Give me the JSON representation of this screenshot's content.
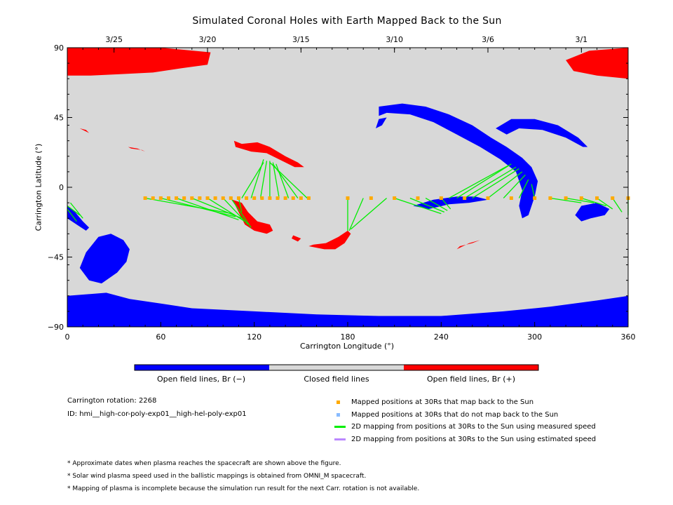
{
  "chart_data": {
    "type": "map",
    "title": "Simulated Coronal Holes with Earth Mapped Back to the Sun",
    "xlabel": "Carrington Longitude (°)",
    "ylabel": "Carrington Latitude (°)",
    "xlim": [
      0,
      360
    ],
    "ylim": [
      -90,
      90
    ],
    "x_ticks": [
      "0",
      "60",
      "120",
      "180",
      "240",
      "300",
      "360"
    ],
    "y_ticks": [
      "90",
      "45",
      "0",
      "−45",
      "−90"
    ],
    "date_ticks": [
      {
        "label": "3/25",
        "lon": 30
      },
      {
        "label": "3/20",
        "lon": 90
      },
      {
        "label": "3/15",
        "lon": 150
      },
      {
        "label": "3/10",
        "lon": 210
      },
      {
        "label": "3/6",
        "lon": 270
      },
      {
        "label": "3/1",
        "lon": 330
      }
    ],
    "background_color": "#d8d8d8",
    "colors": {
      "negative": "#0000ff",
      "closed": "#d8d8d8",
      "positive": "#ff0000",
      "mapped": "#ffaa00",
      "unmapped": "#88bbff",
      "measured": "#00ee00",
      "estimated": "#bb88ff"
    },
    "holes_negative": [
      [
        [
          0,
          -90
        ],
        [
          0,
          -70
        ],
        [
          25,
          -68
        ],
        [
          40,
          -72
        ],
        [
          60,
          -75
        ],
        [
          80,
          -78
        ],
        [
          120,
          -80
        ],
        [
          160,
          -82
        ],
        [
          200,
          -83
        ],
        [
          240,
          -83
        ],
        [
          280,
          -80
        ],
        [
          310,
          -77
        ],
        [
          340,
          -73
        ],
        [
          360,
          -70
        ],
        [
          360,
          -90
        ]
      ],
      [
        [
          8,
          -52
        ],
        [
          12,
          -42
        ],
        [
          20,
          -32
        ],
        [
          28,
          -30
        ],
        [
          36,
          -34
        ],
        [
          40,
          -40
        ],
        [
          38,
          -48
        ],
        [
          32,
          -55
        ],
        [
          22,
          -62
        ],
        [
          14,
          -60
        ]
      ],
      [
        [
          0,
          -12
        ],
        [
          5,
          -16
        ],
        [
          10,
          -22
        ],
        [
          14,
          -26
        ],
        [
          12,
          -28
        ],
        [
          6,
          -24
        ],
        [
          0,
          -20
        ]
      ],
      [
        [
          200,
          52
        ],
        [
          215,
          54
        ],
        [
          230,
          52
        ],
        [
          245,
          47
        ],
        [
          260,
          40
        ],
        [
          272,
          32
        ],
        [
          282,
          26
        ],
        [
          292,
          19
        ],
        [
          298,
          13
        ],
        [
          302,
          4
        ],
        [
          300,
          -6
        ],
        [
          296,
          -18
        ],
        [
          292,
          -20
        ],
        [
          290,
          -12
        ],
        [
          292,
          -2
        ],
        [
          288,
          10
        ],
        [
          278,
          18
        ],
        [
          265,
          26
        ],
        [
          250,
          34
        ],
        [
          235,
          42
        ],
        [
          220,
          47
        ],
        [
          205,
          48
        ],
        [
          200,
          46
        ]
      ],
      [
        [
          198,
          38
        ],
        [
          200,
          44
        ],
        [
          205,
          45
        ],
        [
          202,
          40
        ]
      ],
      [
        [
          275,
          38
        ],
        [
          285,
          44
        ],
        [
          300,
          44
        ],
        [
          315,
          40
        ],
        [
          328,
          32
        ],
        [
          334,
          26
        ],
        [
          331,
          26
        ],
        [
          320,
          32
        ],
        [
          305,
          37
        ],
        [
          290,
          38
        ],
        [
          282,
          34
        ]
      ],
      [
        [
          222,
          -12
        ],
        [
          235,
          -8
        ],
        [
          250,
          -6
        ],
        [
          262,
          -6
        ],
        [
          270,
          -8
        ],
        [
          258,
          -10
        ],
        [
          245,
          -11
        ],
        [
          232,
          -14
        ]
      ],
      [
        [
          330,
          -12
        ],
        [
          340,
          -10
        ],
        [
          348,
          -14
        ],
        [
          345,
          -18
        ],
        [
          336,
          -20
        ],
        [
          330,
          -22
        ],
        [
          326,
          -18
        ]
      ]
    ],
    "holes_positive": [
      [
        [
          0,
          90
        ],
        [
          0,
          72
        ],
        [
          15,
          72
        ],
        [
          35,
          73
        ],
        [
          55,
          74
        ],
        [
          75,
          77
        ],
        [
          90,
          79
        ],
        [
          92,
          87
        ],
        [
          60,
          90
        ]
      ],
      [
        [
          360,
          90
        ],
        [
          360,
          70
        ],
        [
          340,
          72
        ],
        [
          325,
          75
        ],
        [
          320,
          82
        ],
        [
          335,
          88
        ]
      ],
      [
        [
          107,
          30
        ],
        [
          112,
          28
        ],
        [
          122,
          29
        ],
        [
          130,
          26
        ],
        [
          140,
          20
        ],
        [
          148,
          16
        ],
        [
          152,
          13
        ],
        [
          146,
          13
        ],
        [
          136,
          18
        ],
        [
          128,
          22
        ],
        [
          118,
          23
        ],
        [
          108,
          26
        ]
      ],
      [
        [
          106,
          -8
        ],
        [
          110,
          -16
        ],
        [
          114,
          -24
        ],
        [
          120,
          -28
        ],
        [
          128,
          -30
        ],
        [
          132,
          -28
        ],
        [
          130,
          -24
        ],
        [
          122,
          -22
        ],
        [
          116,
          -16
        ],
        [
          112,
          -10
        ]
      ],
      [
        [
          155,
          -38
        ],
        [
          165,
          -40
        ],
        [
          172,
          -40
        ],
        [
          178,
          -36
        ],
        [
          182,
          -30
        ],
        [
          180,
          -28
        ],
        [
          174,
          -32
        ],
        [
          166,
          -36
        ],
        [
          158,
          -37
        ]
      ],
      [
        [
          145,
          -31
        ],
        [
          150,
          -33
        ],
        [
          148,
          -35
        ],
        [
          144,
          -33
        ]
      ],
      [
        [
          250,
          -40
        ],
        [
          258,
          -36
        ],
        [
          265,
          -34
        ],
        [
          260,
          -36
        ],
        [
          252,
          -38
        ]
      ],
      [
        [
          39,
          26
        ],
        [
          45,
          25
        ],
        [
          50,
          23
        ],
        [
          48,
          24
        ],
        [
          41,
          25
        ]
      ],
      [
        [
          8,
          38
        ],
        [
          12,
          37
        ],
        [
          14,
          35
        ],
        [
          10,
          37
        ]
      ]
    ],
    "mapped_lat": -7,
    "mapped_positions": [
      50,
      55,
      60,
      65,
      70,
      75,
      80,
      85,
      90,
      95,
      100,
      105,
      110,
      115,
      120,
      125,
      130,
      135,
      140,
      145,
      150,
      155,
      180,
      195,
      210,
      225,
      240,
      255,
      270,
      285,
      300,
      310,
      320,
      330,
      340,
      350,
      360
    ],
    "measured_lines": [
      [
        [
          50,
          -7
        ],
        [
          106,
          -17
        ]
      ],
      [
        [
          60,
          -7
        ],
        [
          108,
          -19
        ]
      ],
      [
        [
          70,
          -7
        ],
        [
          110,
          -21
        ]
      ],
      [
        [
          80,
          -7
        ],
        [
          112,
          -20
        ]
      ],
      [
        [
          90,
          -7
        ],
        [
          114,
          -22
        ]
      ],
      [
        [
          100,
          -7
        ],
        [
          116,
          -24
        ]
      ],
      [
        [
          105,
          -7
        ],
        [
          118,
          -26
        ]
      ],
      [
        [
          110,
          -7
        ],
        [
          112,
          -16
        ]
      ],
      [
        [
          112,
          -7
        ],
        [
          126,
          16
        ]
      ],
      [
        [
          118,
          -7
        ],
        [
          126,
          18
        ]
      ],
      [
        [
          124,
          -7
        ],
        [
          128,
          17
        ]
      ],
      [
        [
          130,
          -7
        ],
        [
          130,
          17
        ]
      ],
      [
        [
          136,
          -7
        ],
        [
          132,
          16
        ]
      ],
      [
        [
          142,
          -7
        ],
        [
          134,
          15
        ]
      ],
      [
        [
          148,
          -7
        ],
        [
          132,
          15
        ]
      ],
      [
        [
          154,
          -7
        ],
        [
          130,
          16
        ]
      ],
      [
        [
          180,
          -7
        ],
        [
          180,
          -28
        ]
      ],
      [
        [
          190,
          -7
        ],
        [
          181,
          -28
        ]
      ],
      [
        [
          205,
          -7
        ],
        [
          182,
          -27
        ]
      ],
      [
        [
          210,
          -7
        ],
        [
          240,
          -17
        ]
      ],
      [
        [
          220,
          -7
        ],
        [
          242,
          -16
        ]
      ],
      [
        [
          230,
          -7
        ],
        [
          244,
          -15
        ]
      ],
      [
        [
          240,
          -7
        ],
        [
          246,
          -14
        ]
      ],
      [
        [
          245,
          -7
        ],
        [
          283,
          14
        ]
      ],
      [
        [
          250,
          -7
        ],
        [
          285,
          15
        ]
      ],
      [
        [
          255,
          -7
        ],
        [
          288,
          13
        ]
      ],
      [
        [
          260,
          -7
        ],
        [
          290,
          12
        ]
      ],
      [
        [
          270,
          -7
        ],
        [
          292,
          10
        ]
      ],
      [
        [
          280,
          -7
        ],
        [
          294,
          8
        ]
      ],
      [
        [
          290,
          -7
        ],
        [
          296,
          5
        ]
      ],
      [
        [
          300,
          -7
        ],
        [
          298,
          2
        ]
      ],
      [
        [
          310,
          -7
        ],
        [
          330,
          -10
        ]
      ],
      [
        [
          320,
          -7
        ],
        [
          338,
          -10
        ]
      ],
      [
        [
          330,
          -7
        ],
        [
          346,
          -12
        ]
      ],
      [
        [
          340,
          -7
        ],
        [
          350,
          -14
        ]
      ],
      [
        [
          350,
          -7
        ],
        [
          356,
          -16
        ]
      ],
      [
        [
          360,
          -7
        ],
        [
          360,
          -18
        ]
      ],
      [
        [
          0,
          -12
        ],
        [
          8,
          -18
        ]
      ],
      [
        [
          0,
          -14
        ],
        [
          6,
          -22
        ]
      ],
      [
        [
          2,
          -10
        ],
        [
          10,
          -20
        ]
      ]
    ],
    "colorbar": [
      "Open field lines, Br (−)",
      "Closed field lines",
      "Open field lines, Br (+)"
    ]
  },
  "info": {
    "rotation": "Carrington rotation: 2268",
    "id": "ID: hmi__high-cor-poly-exp01__high-hel-poly-exp01"
  },
  "legend": [
    {
      "label": "Mapped positions at 30Rs that map back to the Sun",
      "type": "square",
      "color": "#ffaa00"
    },
    {
      "label": "Mapped positions at 30Rs that do not map back to the Sun",
      "type": "square",
      "color": "#88bbff"
    },
    {
      "label": "2D mapping from positions at 30Rs to the Sun using measured speed",
      "type": "line",
      "color": "#00ee00"
    },
    {
      "label": "2D mapping from positions at 30Rs to the Sun using estimated speed",
      "type": "line",
      "color": "#bb88ff"
    }
  ],
  "notes": [
    "* Approximate dates when plasma reaches the spacecraft are shown above the figure.",
    "* Solar wind plasma speed used in the ballistic mappings is obtained from OMNI_M spacecraft.",
    "* Mapping of plasma is incomplete because the simulation run result for the next Carr. rotation is not available."
  ]
}
